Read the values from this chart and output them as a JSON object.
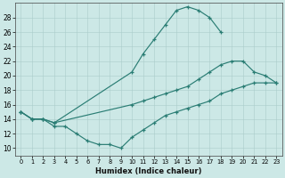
{
  "xlabel": "Humidex (Indice chaleur)",
  "bg_color": "#cce8e6",
  "line_color": "#2a7d74",
  "grid_color": "#aaccca",
  "xlim": [
    -0.5,
    23.5
  ],
  "ylim": [
    9,
    30
  ],
  "yticks": [
    10,
    12,
    14,
    16,
    18,
    20,
    22,
    24,
    26,
    28
  ],
  "xticks": [
    0,
    1,
    2,
    3,
    4,
    5,
    6,
    7,
    8,
    9,
    10,
    11,
    12,
    13,
    14,
    15,
    16,
    17,
    18,
    19,
    20,
    21,
    22,
    23
  ],
  "line_peak_x": [
    0,
    1,
    2,
    3,
    10,
    11,
    12,
    13,
    14,
    15,
    16,
    17,
    18
  ],
  "line_peak_y": [
    15,
    14,
    14,
    13.5,
    20.5,
    23,
    25,
    27,
    29,
    29.5,
    29,
    28,
    26
  ],
  "line_diag_x": [
    0,
    1,
    2,
    3,
    10,
    11,
    12,
    13,
    14,
    15,
    16,
    17,
    18,
    19,
    20,
    21,
    22,
    23
  ],
  "line_diag_y": [
    15,
    14,
    14,
    13.5,
    16,
    16.5,
    17,
    17.5,
    18,
    18.5,
    19.5,
    20.5,
    21.5,
    22,
    22,
    20.5,
    20,
    19
  ],
  "line_low_x": [
    0,
    1,
    2,
    3,
    4,
    5,
    6,
    7,
    8,
    9,
    10,
    11,
    12,
    13,
    14,
    15,
    16,
    17,
    18,
    19,
    20,
    21,
    22,
    23
  ],
  "line_low_y": [
    15,
    14,
    14,
    13,
    13,
    12,
    11,
    10.5,
    10.5,
    10,
    11.5,
    12.5,
    13.5,
    14.5,
    15,
    15.5,
    16,
    16.5,
    17.5,
    18,
    18.5,
    19,
    19,
    19
  ]
}
